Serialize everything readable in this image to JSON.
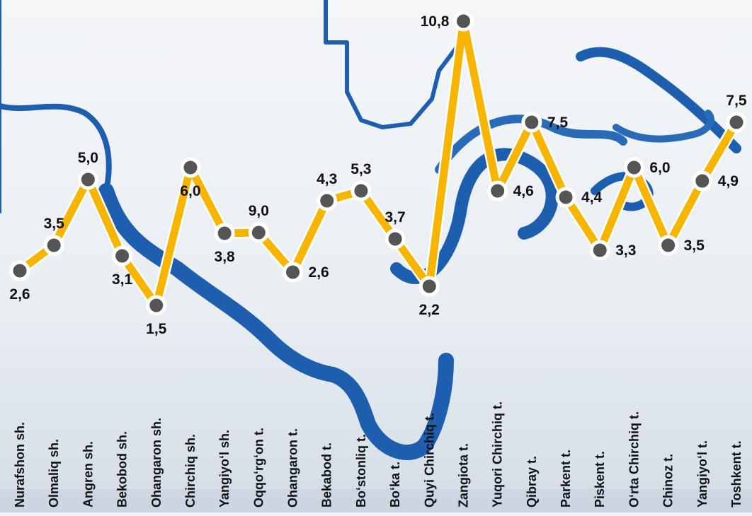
{
  "colors": {
    "line": "#f7b500",
    "marker_fill": "#555555",
    "marker_stroke": "#ffffff",
    "river": "#1d5fae",
    "background": "#eef2f6",
    "bottom_strip": "#cdd7e3"
  },
  "chart_data": {
    "type": "line",
    "categories": [
      "Nurafshon sh.",
      "Olmaliq sh.",
      "Angren sh.",
      "Bekobod sh.",
      "Ohangaron sh.",
      "Chirchiq sh.",
      "Yangiyo‘l sh.",
      "Oqqo‘rg‘on t.",
      "Ohangaron t.",
      "Bekabod t.",
      "Bo‘stonliq t.",
      "Bo‘ka t.",
      "Quyi Chirchiq t.",
      "Zangiota t.",
      "Yuqori Chirchiq t.",
      "Qibray t.",
      "Parkent t.",
      "Piskent t.",
      "O‘rta Chirchiq t.",
      "Chinoz t.",
      "Yangiyo‘l t.",
      "Toshkent t."
    ],
    "labels": [
      "2,6",
      "3,5",
      "5,0",
      "3,1",
      "1,5",
      "6,0",
      "3,8",
      "9,0",
      "2,6",
      "4,3",
      "5,3",
      "3,7",
      "2,2",
      "10,8",
      "4,6",
      "7,5",
      "4,4",
      "3,3",
      "6,0",
      "3,5",
      "4,9",
      "7,5"
    ],
    "values": [
      2.6,
      3.5,
      5.0,
      3.1,
      1.5,
      6.0,
      3.8,
      9.0,
      2.6,
      4.3,
      5.3,
      3.7,
      2.2,
      10.8,
      4.6,
      7.5,
      4.4,
      3.3,
      6.0,
      3.5,
      4.9,
      7.5
    ],
    "value_label_position": [
      "below",
      "above",
      "above",
      "below",
      "below",
      "below",
      "below",
      "above",
      "right",
      "above",
      "above",
      "above",
      "below",
      "left",
      "right",
      "right",
      "right",
      "right",
      "right",
      "right",
      "right",
      "above"
    ],
    "legend": "none",
    "grid": false
  }
}
